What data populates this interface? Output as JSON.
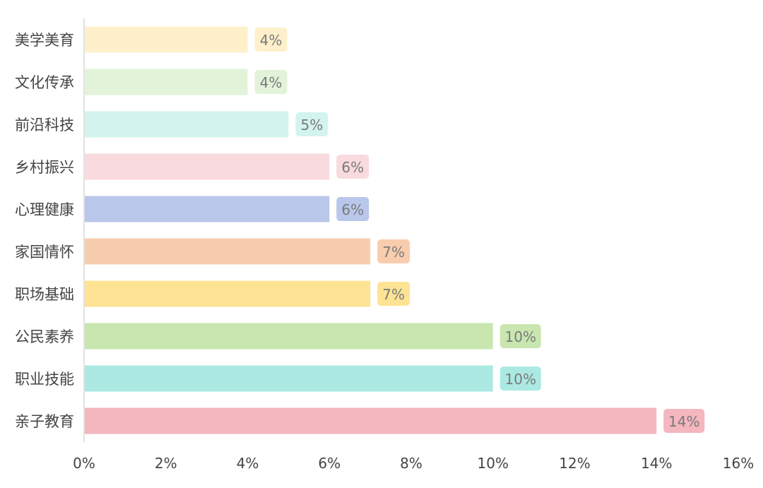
{
  "chart_data": {
    "type": "bar",
    "orientation": "horizontal",
    "title": "",
    "xlabel": "",
    "ylabel": "",
    "xlim": [
      0,
      16
    ],
    "x_ticks": [
      "0%",
      "2%",
      "4%",
      "6%",
      "8%",
      "10%",
      "12%",
      "14%",
      "16%"
    ],
    "x_tick_values": [
      0,
      2,
      4,
      6,
      8,
      10,
      12,
      14,
      16
    ],
    "grid": false,
    "categories": [
      "美学美育",
      "文化传承",
      "前沿科技",
      "乡村振兴",
      "心理健康",
      "家国情怀",
      "职场基础",
      "公民素养",
      "职业技能",
      "亲子教育"
    ],
    "values": [
      4,
      4,
      5,
      6,
      6,
      7,
      7,
      10,
      10,
      14
    ],
    "data_labels": [
      "4%",
      "4%",
      "5%",
      "6%",
      "6%",
      "7%",
      "7%",
      "10%",
      "10%",
      "14%"
    ],
    "colors": [
      "#fdf0cb",
      "#e2f3da",
      "#d3f3ee",
      "#f9dade",
      "#b8c7ea",
      "#f8cdae",
      "#fee394",
      "#c9e6b0",
      "#abe9e2",
      "#f4b6bf"
    ],
    "label_text_color": "#7a7a7a",
    "axis_text_color": "#444444"
  }
}
